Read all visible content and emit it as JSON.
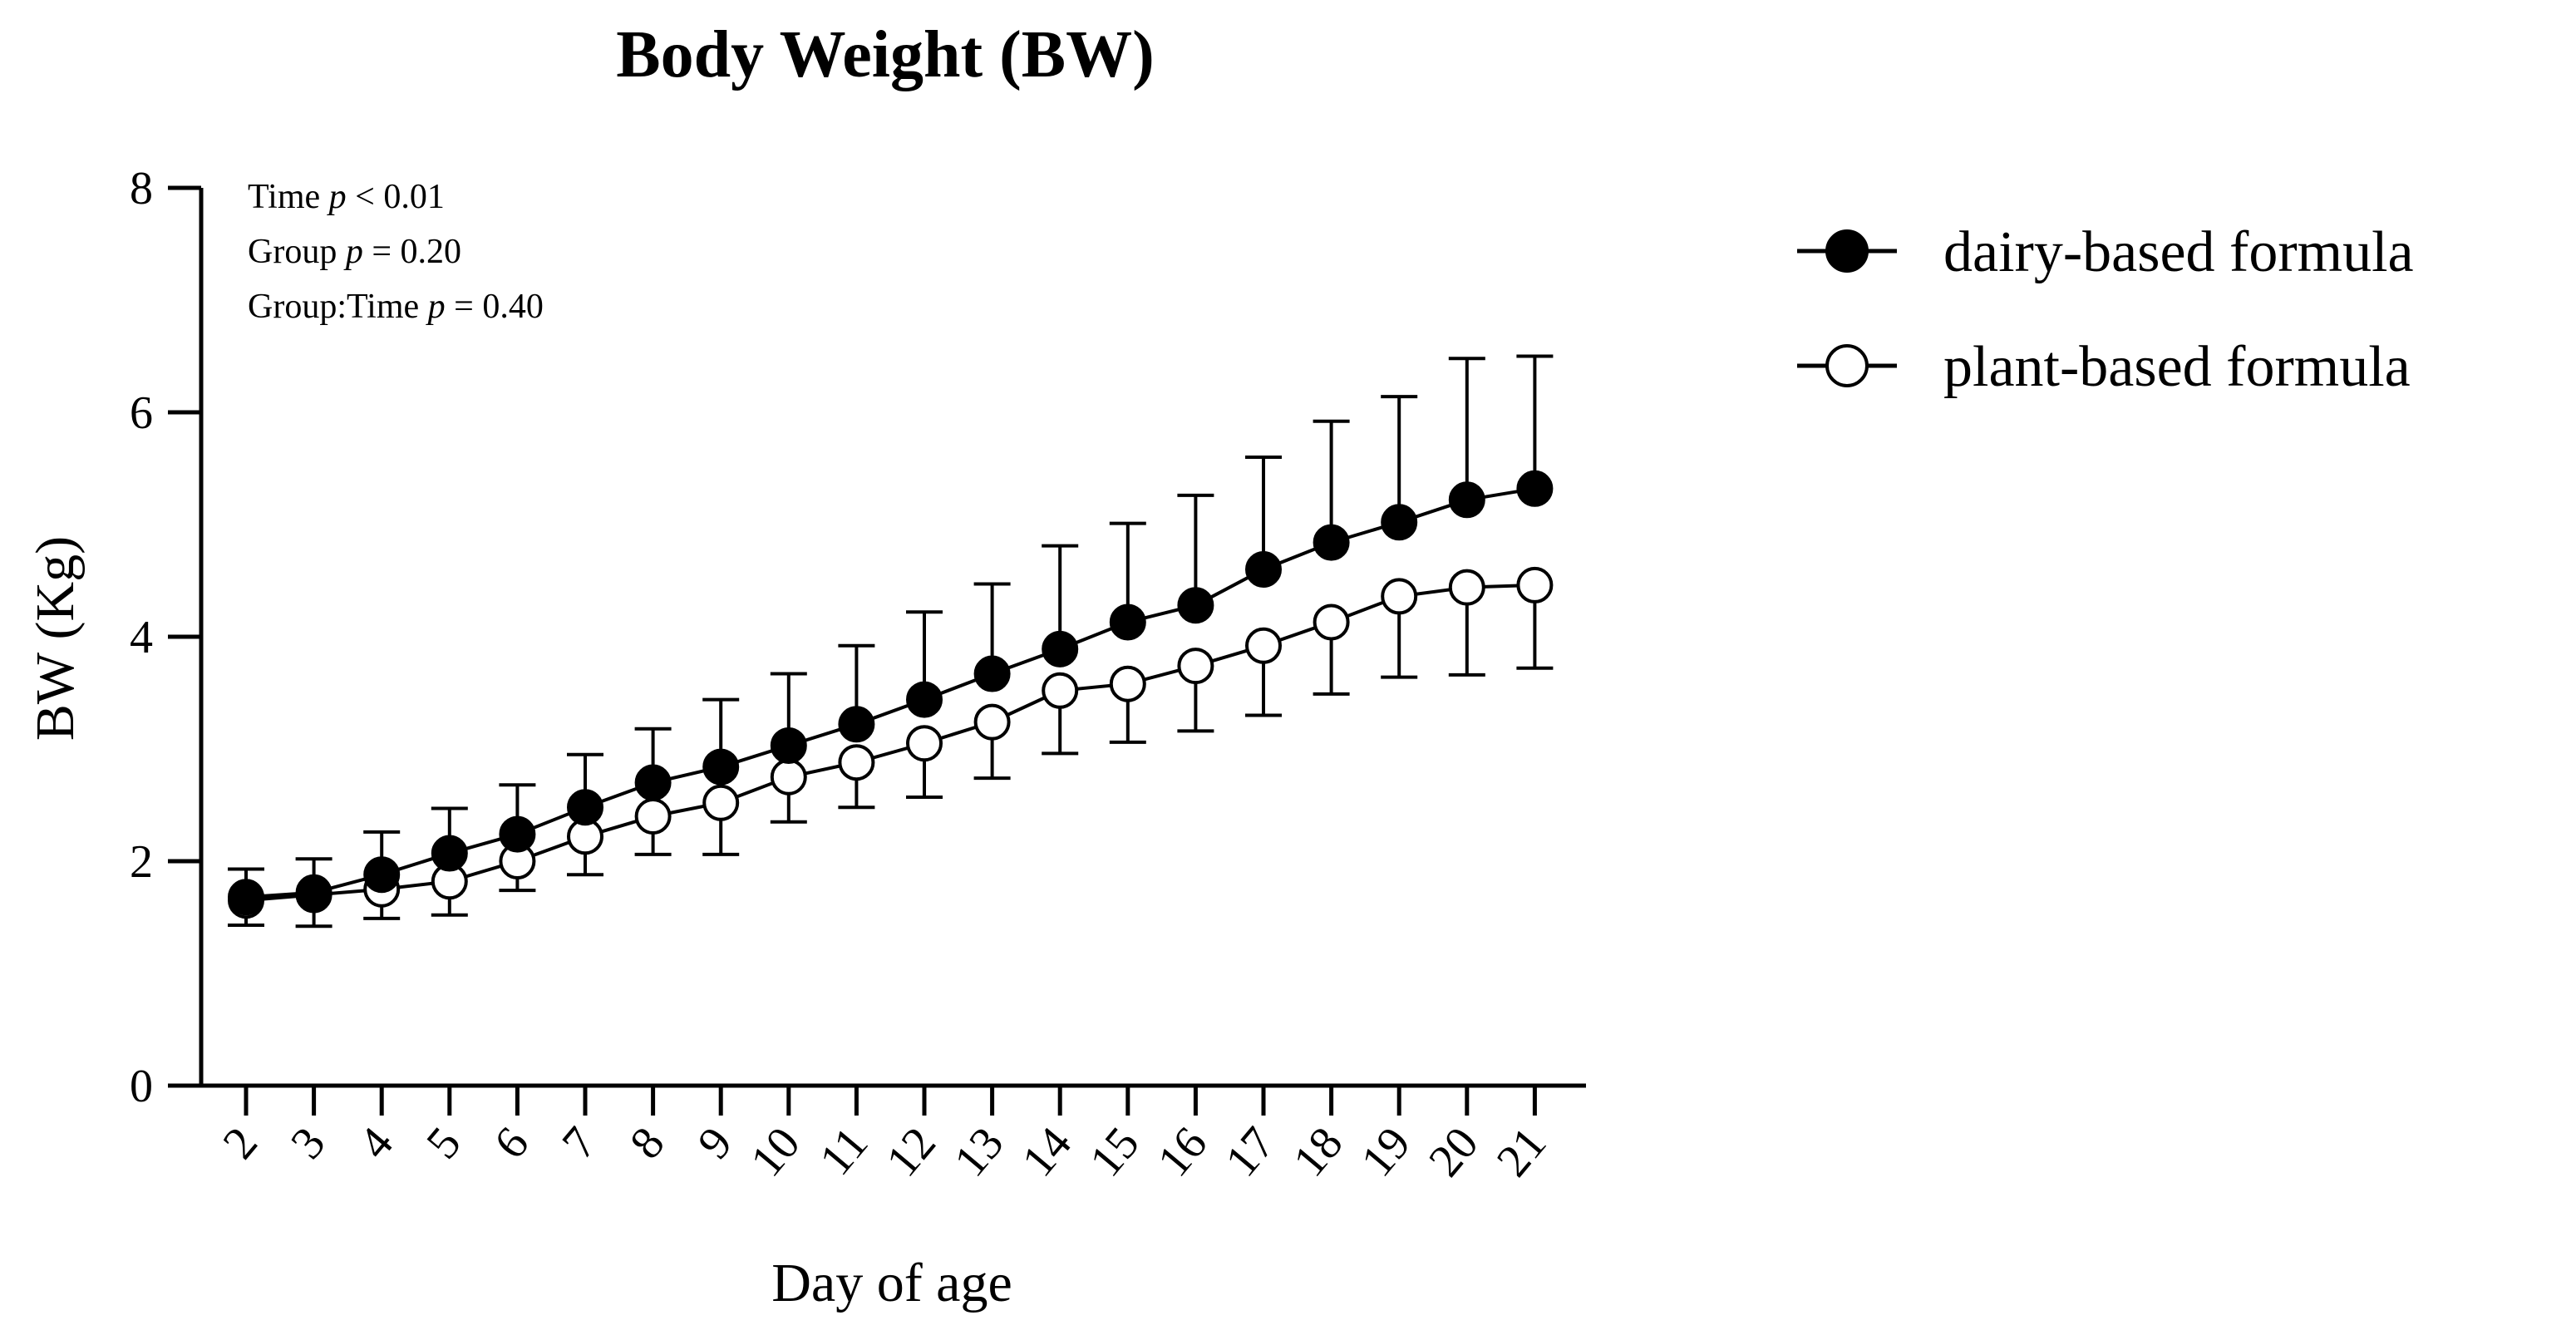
{
  "chart_data": {
    "type": "line",
    "title": "Body Weight (BW)",
    "xlabel": "Day of age",
    "ylabel": "BW (Kg)",
    "ylim": [
      0,
      8
    ],
    "yticks": [
      "0",
      "2",
      "4",
      "6",
      "8"
    ],
    "categories": [
      "2",
      "3",
      "4",
      "5",
      "6",
      "7",
      "8",
      "9",
      "10",
      "11",
      "12",
      "13",
      "14",
      "15",
      "16",
      "17",
      "18",
      "19",
      "20",
      "21"
    ],
    "annotations": [
      {
        "label": "Time",
        "p": "p",
        "rest": " < 0.01"
      },
      {
        "label": "Group",
        "p": "p",
        "rest": " = 0.20"
      },
      {
        "label": "Group:Time",
        "p": "p",
        "rest": " = 0.40"
      }
    ],
    "legend_position": "top-right",
    "series": [
      {
        "name": "dairy-based formula",
        "marker": "filled-circle",
        "values": [
          1.68,
          1.72,
          1.88,
          2.07,
          2.24,
          2.48,
          2.7,
          2.84,
          3.03,
          3.22,
          3.44,
          3.67,
          3.89,
          4.13,
          4.28,
          4.6,
          4.84,
          5.02,
          5.22,
          5.32
        ],
        "errors": [
          0.25,
          0.3,
          0.38,
          0.4,
          0.44,
          0.47,
          0.48,
          0.6,
          0.64,
          0.7,
          0.78,
          0.8,
          0.92,
          0.88,
          0.98,
          1.0,
          1.08,
          1.12,
          1.26,
          1.18
        ]
      },
      {
        "name": "plant-based formula",
        "marker": "open-circle",
        "values": [
          1.65,
          1.7,
          1.75,
          1.82,
          2.0,
          2.22,
          2.4,
          2.52,
          2.75,
          2.88,
          3.05,
          3.24,
          3.52,
          3.58,
          3.74,
          3.92,
          4.13,
          4.36,
          4.44,
          4.46
        ],
        "errors": [
          0.22,
          0.28,
          0.26,
          0.3,
          0.26,
          0.34,
          0.34,
          0.46,
          0.4,
          0.4,
          0.48,
          0.5,
          0.56,
          0.52,
          0.58,
          0.62,
          0.64,
          0.72,
          0.78,
          0.74
        ]
      }
    ]
  }
}
